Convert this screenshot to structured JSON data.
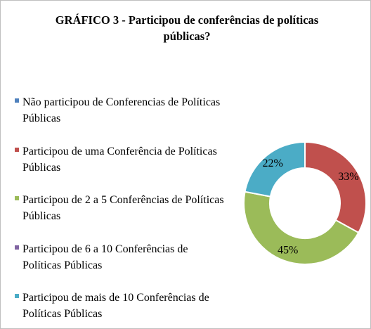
{
  "chart_data": {
    "type": "donut",
    "title": "GRÁFICO 3 - Participou de conferências de políticas públicas?",
    "categories": [
      "Não participou de Conferencias de Políticas Públicas",
      "Participou de uma Conferência de Políticas Públicas",
      "Participou de 2 a 5 Conferências de Políticas Públicas",
      "Participou de 6 a 10 Conferências de Políticas Públicas",
      "Participou de mais de 10 Conferências de Políticas Públicas"
    ],
    "values": [
      0,
      33,
      45,
      0,
      22
    ],
    "value_labels": [
      null,
      "33%",
      "45%",
      null,
      "22%"
    ],
    "colors": [
      "#4f81bd",
      "#c0504d",
      "#9bbb59",
      "#8064a2",
      "#4bacc6"
    ],
    "legend": "left"
  }
}
